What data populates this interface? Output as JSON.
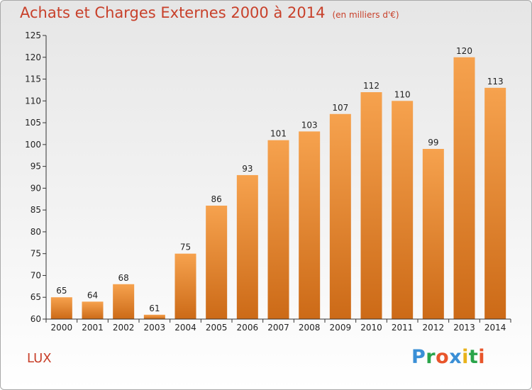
{
  "title": "Achats et Charges Externes 2000 à 2014",
  "subtitle": "(en milliers d'€)",
  "place": "LUX",
  "logo": {
    "letters": [
      "P",
      "r",
      "o",
      "x",
      "i",
      "t",
      "i"
    ],
    "colors": [
      "#3a8fd6",
      "#2aa44a",
      "#e8552b",
      "#3a8fd6",
      "#e9b21a",
      "#2aa44a",
      "#e8552b"
    ]
  },
  "colors": {
    "bar_top": "#f6a24e",
    "bar_bottom": "#cc6a17",
    "title": "#c8402a"
  },
  "chart_data": {
    "type": "bar",
    "categories": [
      "2000",
      "2001",
      "2002",
      "2003",
      "2004",
      "2005",
      "2006",
      "2007",
      "2008",
      "2009",
      "2010",
      "2011",
      "2012",
      "2013",
      "2014"
    ],
    "values": [
      65,
      64,
      68,
      61,
      75,
      86,
      93,
      101,
      103,
      107,
      112,
      110,
      99,
      120,
      113
    ],
    "title": "Achats et Charges Externes 2000 à 2014",
    "xlabel": "",
    "ylabel": "",
    "ylim": [
      60,
      125
    ],
    "yticks": [
      60,
      65,
      70,
      75,
      80,
      85,
      90,
      95,
      100,
      105,
      110,
      115,
      120,
      125
    ],
    "grid": false,
    "legend": "none"
  }
}
